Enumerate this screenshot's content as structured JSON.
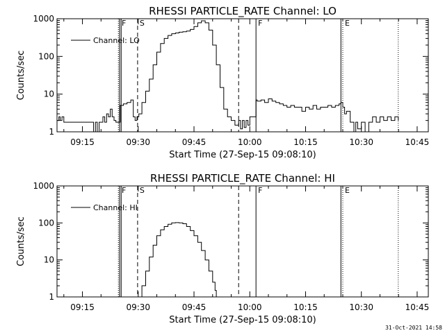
{
  "timestamp": "31-Oct-2021 14:58",
  "chart_data": [
    {
      "type": "line",
      "title": "RHESSI PARTICLE_RATE Channel: LO",
      "xlabel": "Start Time (27-Sep-15 09:08:10)",
      "ylabel": "Counts/sec",
      "xlim": [
        "09:08:10",
        "10:48:00"
      ],
      "ylim": [
        1,
        1000
      ],
      "yscale": "log",
      "xticks": [
        "09:15",
        "09:30",
        "09:45",
        "10:00",
        "10:15",
        "10:30",
        "10:45"
      ],
      "yticks": [
        "1",
        "10",
        "100",
        "1000"
      ],
      "legend": {
        "label": "Channel: LO",
        "position": "top-left"
      },
      "markers": [
        {
          "time": "09:24:40",
          "style": "dotted",
          "label": ""
        },
        {
          "time": "09:25:00",
          "style": "solid",
          "label": "F"
        },
        {
          "time": "09:25:25",
          "style": "solid",
          "label": ""
        },
        {
          "time": "09:29:50",
          "style": "dashed",
          "label": "S"
        },
        {
          "time": "09:57:00",
          "style": "dashed",
          "label": ""
        },
        {
          "time": "10:01:40",
          "style": "solid",
          "label": "F"
        },
        {
          "time": "10:24:30",
          "style": "solid",
          "label": ""
        },
        {
          "time": "10:25:00",
          "style": "dotted",
          "label": "E"
        },
        {
          "time": "10:39:55",
          "style": "dotted",
          "label": ""
        }
      ],
      "series": [
        {
          "name": "Channel: LO",
          "points": [
            [
              "09:08:10",
              2
            ],
            [
              "09:08:40",
              2.5
            ],
            [
              "09:09:00",
              2
            ],
            [
              "09:09:30",
              2.5
            ],
            [
              "09:10:00",
              1.8
            ],
            [
              "09:17:40",
              1.8
            ],
            [
              "09:18:00",
              1
            ],
            [
              "09:18:30",
              1.8
            ],
            [
              "09:19:00",
              1
            ],
            [
              "09:19:30",
              1.8
            ],
            [
              "09:20:30",
              2.5
            ],
            [
              "09:21:00",
              1.8
            ],
            [
              "09:21:30",
              3
            ],
            [
              "09:22:00",
              2.5
            ],
            [
              "09:22:30",
              4
            ],
            [
              "09:23:00",
              2.5
            ],
            [
              "09:23:30",
              2
            ],
            [
              "09:24:00",
              1.8
            ],
            [
              "09:24:40",
              1.8
            ],
            [
              "09:25:10",
              5
            ],
            [
              "09:26:00",
              5.5
            ],
            [
              "09:27:00",
              6
            ],
            [
              "09:28:00",
              7
            ],
            [
              "09:28:40",
              2.5
            ],
            [
              "09:29:10",
              2
            ],
            [
              "09:29:40",
              2.5
            ],
            [
              "09:30:10",
              3
            ],
            [
              "09:31:00",
              6
            ],
            [
              "09:32:00",
              12
            ],
            [
              "09:33:00",
              25
            ],
            [
              "09:34:00",
              60
            ],
            [
              "09:35:00",
              130
            ],
            [
              "09:36:00",
              220
            ],
            [
              "09:37:00",
              300
            ],
            [
              "09:38:00",
              360
            ],
            [
              "09:39:00",
              400
            ],
            [
              "09:40:00",
              420
            ],
            [
              "09:41:00",
              440
            ],
            [
              "09:42:00",
              450
            ],
            [
              "09:43:00",
              470
            ],
            [
              "09:44:00",
              520
            ],
            [
              "09:45:00",
              620
            ],
            [
              "09:46:00",
              780
            ],
            [
              "09:47:00",
              880
            ],
            [
              "09:48:00",
              780
            ],
            [
              "09:49:00",
              500
            ],
            [
              "09:50:00",
              200
            ],
            [
              "09:51:00",
              60
            ],
            [
              "09:52:00",
              15
            ],
            [
              "09:53:00",
              4
            ],
            [
              "09:54:00",
              2.5
            ],
            [
              "09:55:00",
              2
            ],
            [
              "09:56:00",
              1.5
            ],
            [
              "09:57:00",
              2
            ],
            [
              "09:57:30",
              1.2
            ],
            [
              "09:58:00",
              2
            ],
            [
              "09:58:30",
              1.3
            ],
            [
              "09:59:00",
              2
            ],
            [
              "09:59:30",
              1.5
            ],
            [
              "10:00:00",
              2.5
            ],
            [
              "10:01:40",
              7
            ],
            [
              "10:02:00",
              6.5
            ],
            [
              "10:03:00",
              7
            ],
            [
              "10:04:00",
              6
            ],
            [
              "10:05:00",
              7.5
            ],
            [
              "10:06:00",
              6.5
            ],
            [
              "10:07:00",
              6
            ],
            [
              "10:08:00",
              5.5
            ],
            [
              "10:09:00",
              5
            ],
            [
              "10:10:00",
              4.5
            ],
            [
              "10:11:00",
              5
            ],
            [
              "10:12:00",
              4.5
            ],
            [
              "10:13:00",
              4.5
            ],
            [
              "10:14:00",
              3.5
            ],
            [
              "10:15:00",
              4.5
            ],
            [
              "10:16:00",
              4
            ],
            [
              "10:17:00",
              5
            ],
            [
              "10:18:00",
              4
            ],
            [
              "10:19:00",
              4.5
            ],
            [
              "10:20:00",
              4.5
            ],
            [
              "10:21:00",
              5
            ],
            [
              "10:22:00",
              4.5
            ],
            [
              "10:23:00",
              5
            ],
            [
              "10:24:00",
              5.5
            ],
            [
              "10:24:30",
              6
            ],
            [
              "10:25:00",
              4.5
            ],
            [
              "10:25:30",
              3
            ],
            [
              "10:26:00",
              3.5
            ],
            [
              "10:27:00",
              1.8
            ],
            [
              "10:28:00",
              1
            ],
            [
              "10:28:30",
              1.8
            ],
            [
              "10:29:00",
              1.2
            ],
            [
              "10:30:00",
              1.8
            ],
            [
              "10:31:00",
              1
            ],
            [
              "10:32:00",
              1.8
            ],
            [
              "10:33:00",
              2.5
            ],
            [
              "10:34:00",
              1.8
            ],
            [
              "10:35:00",
              2.5
            ],
            [
              "10:36:00",
              2
            ],
            [
              "10:37:00",
              2.5
            ],
            [
              "10:38:00",
              2
            ],
            [
              "10:39:00",
              2.5
            ],
            [
              "10:39:55",
              2
            ]
          ]
        }
      ]
    },
    {
      "type": "line",
      "title": "RHESSI PARTICLE_RATE Channel: HI",
      "xlabel": "Start Time (27-Sep-15 09:08:10)",
      "ylabel": "Counts/sec",
      "xlim": [
        "09:08:10",
        "10:48:00"
      ],
      "ylim": [
        1,
        1000
      ],
      "yscale": "log",
      "xticks": [
        "09:15",
        "09:30",
        "09:45",
        "10:00",
        "10:15",
        "10:30",
        "10:45"
      ],
      "yticks": [
        "1",
        "10",
        "100",
        "1000"
      ],
      "legend": {
        "label": "Channel: HI",
        "position": "top-left"
      },
      "markers": [
        {
          "time": "09:24:40",
          "style": "dotted",
          "label": ""
        },
        {
          "time": "09:25:00",
          "style": "solid",
          "label": "F"
        },
        {
          "time": "09:25:25",
          "style": "solid",
          "label": ""
        },
        {
          "time": "09:29:50",
          "style": "dashed",
          "label": "S"
        },
        {
          "time": "09:57:00",
          "style": "dashed",
          "label": ""
        },
        {
          "time": "10:01:40",
          "style": "solid",
          "label": "F"
        },
        {
          "time": "10:24:30",
          "style": "solid",
          "label": ""
        },
        {
          "time": "10:25:00",
          "style": "dotted",
          "label": "E"
        },
        {
          "time": "10:39:55",
          "style": "dotted",
          "label": ""
        }
      ],
      "series": [
        {
          "name": "Channel: HI",
          "points": [
            [
              "09:30:00",
              1
            ],
            [
              "09:31:00",
              2
            ],
            [
              "09:32:00",
              5
            ],
            [
              "09:33:00",
              12
            ],
            [
              "09:34:00",
              25
            ],
            [
              "09:35:00",
              45
            ],
            [
              "09:36:00",
              65
            ],
            [
              "09:37:00",
              80
            ],
            [
              "09:38:00",
              92
            ],
            [
              "09:39:00",
              100
            ],
            [
              "09:40:00",
              102
            ],
            [
              "09:41:00",
              100
            ],
            [
              "09:42:00",
              95
            ],
            [
              "09:43:00",
              80
            ],
            [
              "09:44:00",
              62
            ],
            [
              "09:45:00",
              45
            ],
            [
              "09:46:00",
              30
            ],
            [
              "09:47:00",
              18
            ],
            [
              "09:48:00",
              10
            ],
            [
              "09:49:00",
              5
            ],
            [
              "09:50:00",
              2.5
            ],
            [
              "09:50:40",
              1.5
            ],
            [
              "09:51:00",
              1
            ]
          ]
        }
      ]
    }
  ]
}
